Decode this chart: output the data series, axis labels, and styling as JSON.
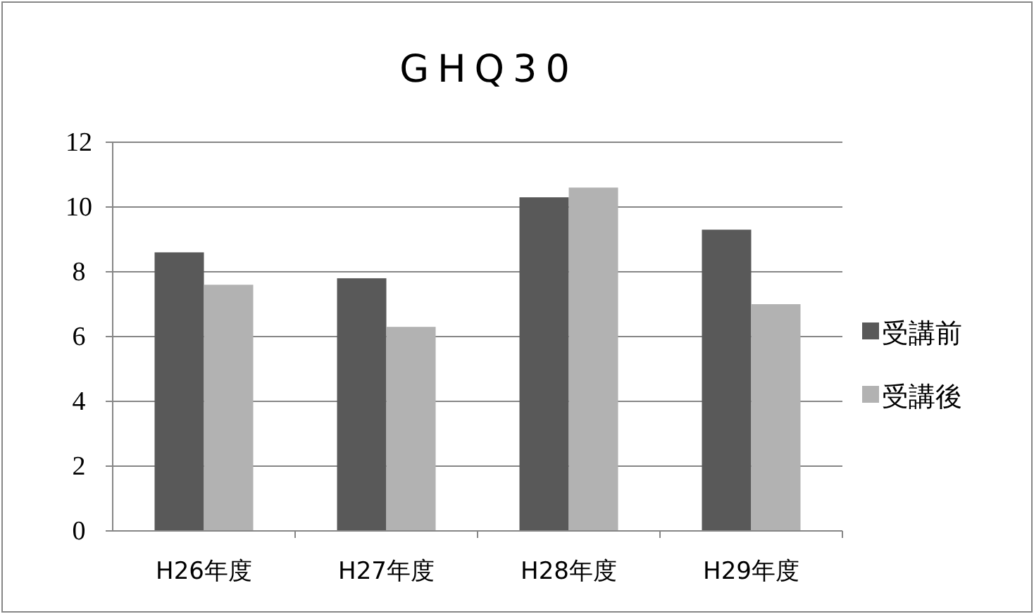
{
  "chart_data": {
    "type": "bar",
    "title": "GHQ30",
    "categories": [
      "H26年度",
      "H27年度",
      "H28年度",
      "H29年度"
    ],
    "series": [
      {
        "name": "受講前",
        "color": "#595959",
        "values": [
          8.6,
          7.8,
          10.3,
          9.3
        ]
      },
      {
        "name": "受講後",
        "color": "#b2b2b2",
        "values": [
          7.6,
          6.3,
          10.6,
          7.0
        ]
      }
    ],
    "ylim": [
      0,
      12
    ],
    "yticks": [
      0,
      2,
      4,
      6,
      8,
      10,
      12
    ],
    "grid": "y",
    "legend": "right"
  }
}
